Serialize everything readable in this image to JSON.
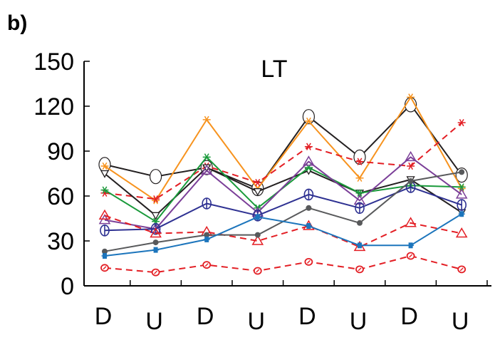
{
  "panel_label": "b)",
  "chart_data": {
    "type": "line",
    "title": "LT",
    "xlabel": "",
    "ylabel": "",
    "categories": [
      "D",
      "U",
      "D",
      "U",
      "D",
      "U",
      "D",
      "U"
    ],
    "ylim": [
      0,
      150
    ],
    "yticks": [
      0,
      30,
      60,
      90,
      120,
      150
    ],
    "grid": false,
    "series": [
      {
        "color": "#231f20",
        "dash": false,
        "marker": "circle-open-large",
        "values": [
          81,
          73,
          79,
          65,
          113,
          86,
          121,
          74
        ]
      },
      {
        "color": "#f7931e",
        "dash": false,
        "marker": "star",
        "values": [
          80,
          57,
          111,
          65,
          110,
          72,
          126,
          65
        ]
      },
      {
        "color": "#e31e24",
        "dash": true,
        "marker": "star",
        "values": [
          62,
          58,
          80,
          69,
          93,
          83,
          80,
          109
        ]
      },
      {
        "color": "#231f20",
        "dash": false,
        "marker": "triangle-down-open",
        "values": [
          75,
          47,
          79,
          63,
          77,
          62,
          71,
          49
        ]
      },
      {
        "color": "#1a9a3b",
        "dash": false,
        "marker": "star",
        "values": [
          64,
          43,
          86,
          52,
          79,
          62,
          67,
          66
        ]
      },
      {
        "color": "#7b3f98",
        "dash": false,
        "marker": "triangle-open",
        "values": [
          44,
          38,
          77,
          49,
          83,
          57,
          86,
          61
        ]
      },
      {
        "color": "#2e3192",
        "dash": false,
        "marker": "circle-open-bar",
        "values": [
          37,
          38,
          55,
          47,
          61,
          52,
          66,
          54
        ]
      },
      {
        "color": "#e31e24",
        "dash": true,
        "marker": "triangle-open",
        "values": [
          47,
          35,
          36,
          30,
          40,
          26,
          42,
          35
        ]
      },
      {
        "color": "#58595b",
        "dash": false,
        "marker": "dot",
        "values": [
          23,
          29,
          34,
          34,
          52,
          42,
          70,
          76
        ]
      },
      {
        "color": "#1c75bc",
        "dash": false,
        "marker": "plus",
        "values": [
          20,
          24,
          31,
          46,
          40,
          27,
          27,
          48
        ]
      },
      {
        "color": "#e31e24",
        "dash": true,
        "marker": "circle-open-small",
        "values": [
          12,
          9,
          14,
          10,
          16,
          11,
          20,
          11
        ]
      }
    ]
  }
}
